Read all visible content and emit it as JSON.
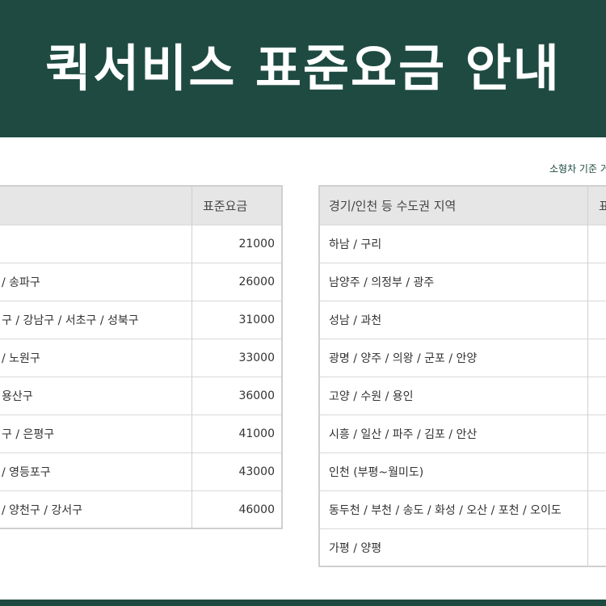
{
  "header": {
    "title": "퀵서비스 표준요금 안내"
  },
  "note": "소형차 기준 거",
  "seoul_table": {
    "fare_header": "표준요금",
    "rows": [
      {
        "fare": "21000"
      },
      {
        "area": "/ 송파구",
        "fare": "26000"
      },
      {
        "area": "구 / 강남구 / 서초구 / 성북구",
        "fare": "31000"
      },
      {
        "area": "/ 노원구",
        "fare": "33000"
      },
      {
        "area": "용산구",
        "fare": "36000"
      },
      {
        "area": "구 / 은평구",
        "fare": "41000"
      },
      {
        "area": "/ 영등포구",
        "fare": "43000"
      },
      {
        "area": "/ 양천구 / 강서구",
        "fare": "46000"
      }
    ]
  },
  "metro_table": {
    "area_header": "경기/인천 등 수도권 지역",
    "fare_header": "표",
    "rows": [
      {
        "area": "하남 / 구리"
      },
      {
        "area": "남양주 / 의정부 / 광주"
      },
      {
        "area": "성남 / 과천"
      },
      {
        "area": "광명 / 양주 / 의왕 / 군포 / 안양"
      },
      {
        "area": "고양 / 수원 / 용인"
      },
      {
        "area": "시흥 / 일산 / 파주 / 김포 / 안산"
      },
      {
        "area": "인천 (부평~월미도)"
      },
      {
        "area": "동두천 / 부천 / 송도 / 화성 / 오산 / 포천 / 오이도"
      },
      {
        "area": "가평 / 양평"
      }
    ]
  }
}
